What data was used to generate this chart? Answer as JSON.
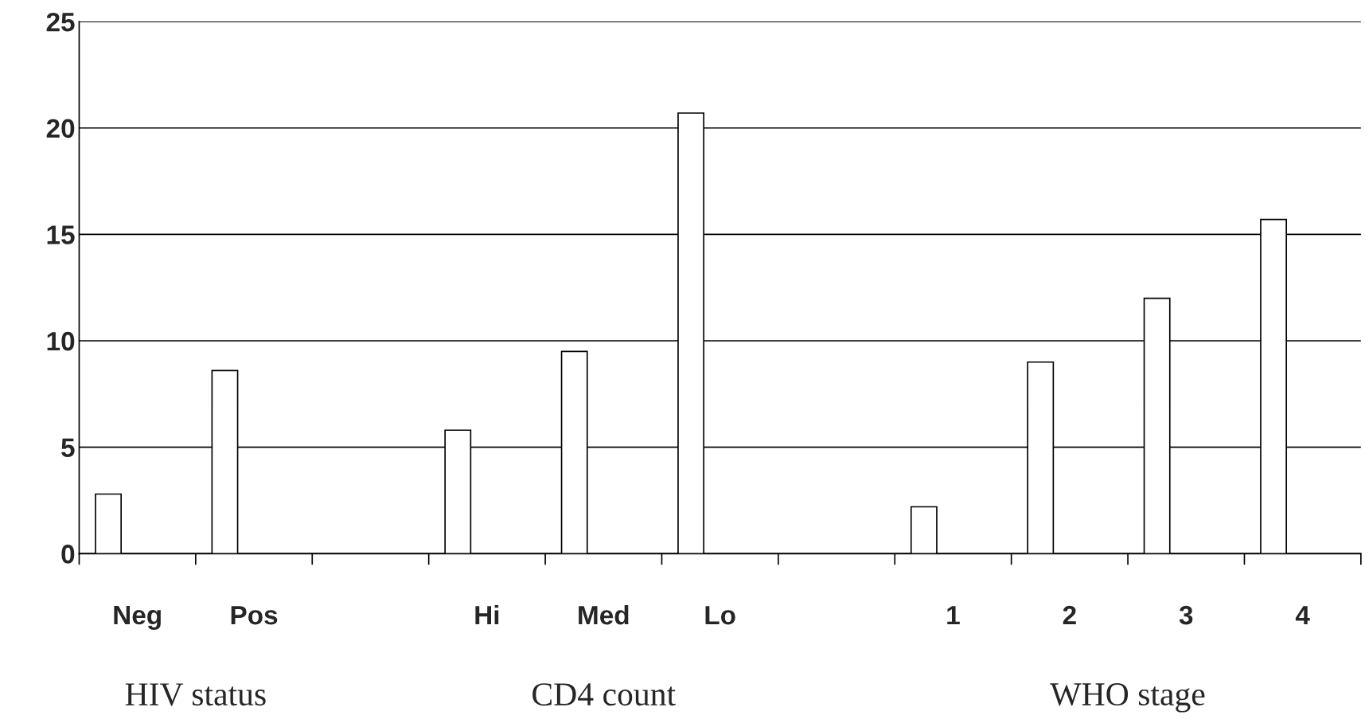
{
  "chart_data": {
    "type": "bar",
    "categories": [
      "Neg",
      "Pos",
      null,
      "Hi",
      "Med",
      "Lo",
      null,
      "1",
      "2",
      "3",
      "4"
    ],
    "values": [
      2.8,
      8.6,
      null,
      5.8,
      9.5,
      20.7,
      null,
      2.2,
      9.0,
      12.0,
      15.7
    ],
    "color": "#ffffff",
    "ylim": [
      0,
      25
    ],
    "yticks": [
      0,
      5,
      10,
      15,
      20,
      25
    ],
    "grid": "y",
    "annotations": [
      "HIV status",
      "CD4 count",
      "WHO stage"
    ]
  }
}
